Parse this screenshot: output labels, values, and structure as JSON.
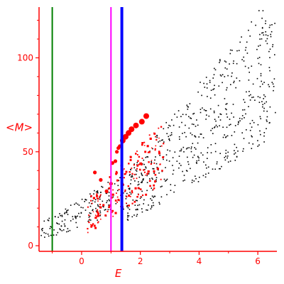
{
  "colors": {
    "axis": "#ff0000",
    "black_points": "#000000",
    "red_points": "#ff0000",
    "green_line": "#008000",
    "magenta_line": "#ff00ff",
    "blue_line": "#0000ff"
  },
  "chart_data": {
    "type": "scatter",
    "xlabel": "E",
    "ylabel": "<M>",
    "xlim": [
      -1.45,
      6.65
    ],
    "ylim": [
      -3,
      127
    ],
    "xticks": [
      0,
      2,
      4,
      6
    ],
    "xtick_labels": [
      "0",
      "2",
      "4",
      "6"
    ],
    "yticks": [
      0,
      50,
      100
    ],
    "ytick_labels": [
      "0",
      "50",
      "100"
    ],
    "grid": false,
    "legend": "none",
    "vertical_lines": [
      {
        "x": -1.0,
        "color": "green",
        "width": "thin"
      },
      {
        "x": 1.0,
        "color": "magenta",
        "width": "thin"
      },
      {
        "x": 1.37,
        "color": "blue",
        "width": "thick"
      }
    ],
    "red_large_points": [
      [
        0.45,
        39
      ],
      [
        0.65,
        35
      ],
      [
        0.85,
        29
      ],
      [
        1.0,
        33
      ],
      [
        1.05,
        44
      ],
      [
        1.15,
        45
      ],
      [
        1.2,
        50
      ],
      [
        1.25,
        52
      ],
      [
        1.3,
        53
      ],
      [
        1.4,
        56
      ],
      [
        1.5,
        58
      ],
      [
        1.6,
        60
      ],
      [
        1.7,
        62
      ],
      [
        1.85,
        64
      ],
      [
        2.05,
        66
      ],
      [
        2.2,
        69
      ]
    ],
    "series_points": [
      {
        "name": "black",
        "region": "low",
        "x_range": [
          -1.4,
          1.5
        ],
        "y_base": 5,
        "y_slope": 7,
        "spread": 10,
        "count": 160
      },
      {
        "name": "black",
        "region": "mid",
        "x_range": [
          1.5,
          6.6
        ],
        "y_base": 20,
        "y_slope": 12,
        "spread": 28,
        "count": 560
      },
      {
        "name": "red",
        "region": "cluster",
        "x_range": [
          0.2,
          2.8
        ],
        "y_base": 12,
        "y_slope": 12,
        "spread": 18,
        "count": 180
      }
    ]
  }
}
